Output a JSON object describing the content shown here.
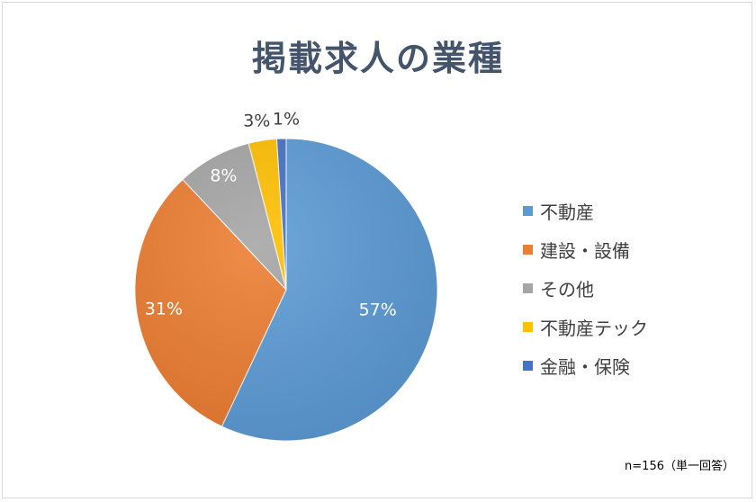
{
  "chart_data": {
    "type": "pie",
    "title": "掲載求人の業種",
    "categories": [
      "不動産",
      "建設・設備",
      "その他",
      "不動産テック",
      "金融・保険"
    ],
    "values": [
      57,
      31,
      8,
      3,
      1
    ],
    "value_labels": [
      "57%",
      "31%",
      "8%",
      "3%",
      "1%"
    ],
    "colors": [
      "#5b9bd5",
      "#ed7d31",
      "#a5a5a5",
      "#ffc000",
      "#4472c4"
    ],
    "legend_position": "right",
    "note": "n=156（単一回答）"
  }
}
